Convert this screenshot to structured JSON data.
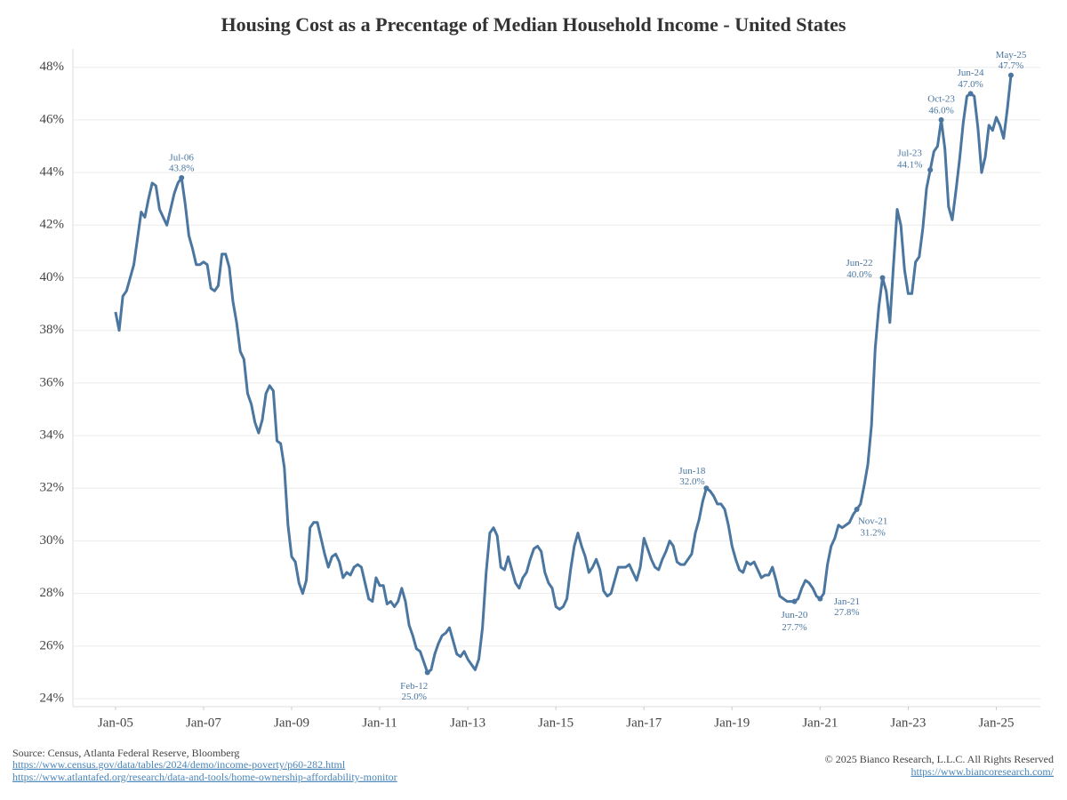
{
  "chart_data": {
    "type": "line",
    "title": "Housing Cost as a Precentage of Median Household Income - United States",
    "x": [
      "2005-01",
      "2005-02",
      "2005-03",
      "2005-04",
      "2005-05",
      "2005-06",
      "2005-07",
      "2005-08",
      "2005-09",
      "2005-10",
      "2005-11",
      "2005-12",
      "2006-01",
      "2006-02",
      "2006-03",
      "2006-04",
      "2006-05",
      "2006-06",
      "2006-07",
      "2006-08",
      "2006-09",
      "2006-10",
      "2006-11",
      "2006-12",
      "2007-01",
      "2007-02",
      "2007-03",
      "2007-04",
      "2007-05",
      "2007-06",
      "2007-07",
      "2007-08",
      "2007-09",
      "2007-10",
      "2007-11",
      "2007-12",
      "2008-01",
      "2008-02",
      "2008-03",
      "2008-04",
      "2008-05",
      "2008-06",
      "2008-07",
      "2008-08",
      "2008-09",
      "2008-10",
      "2008-11",
      "2008-12",
      "2009-01",
      "2009-02",
      "2009-03",
      "2009-04",
      "2009-05",
      "2009-06",
      "2009-07",
      "2009-08",
      "2009-09",
      "2009-10",
      "2009-11",
      "2009-12",
      "2010-01",
      "2010-02",
      "2010-03",
      "2010-04",
      "2010-05",
      "2010-06",
      "2010-07",
      "2010-08",
      "2010-09",
      "2010-10",
      "2010-11",
      "2010-12",
      "2011-01",
      "2011-02",
      "2011-03",
      "2011-04",
      "2011-05",
      "2011-06",
      "2011-07",
      "2011-08",
      "2011-09",
      "2011-10",
      "2011-11",
      "2011-12",
      "2012-01",
      "2012-02",
      "2012-03",
      "2012-04",
      "2012-05",
      "2012-06",
      "2012-07",
      "2012-08",
      "2012-09",
      "2012-10",
      "2012-11",
      "2012-12",
      "2013-01",
      "2013-02",
      "2013-03",
      "2013-04",
      "2013-05",
      "2013-06",
      "2013-07",
      "2013-08",
      "2013-09",
      "2013-10",
      "2013-11",
      "2013-12",
      "2014-01",
      "2014-02",
      "2014-03",
      "2014-04",
      "2014-05",
      "2014-06",
      "2014-07",
      "2014-08",
      "2014-09",
      "2014-10",
      "2014-11",
      "2014-12",
      "2015-01",
      "2015-02",
      "2015-03",
      "2015-04",
      "2015-05",
      "2015-06",
      "2015-07",
      "2015-08",
      "2015-09",
      "2015-10",
      "2015-11",
      "2015-12",
      "2016-01",
      "2016-02",
      "2016-03",
      "2016-04",
      "2016-05",
      "2016-06",
      "2016-07",
      "2016-08",
      "2016-09",
      "2016-10",
      "2016-11",
      "2016-12",
      "2017-01",
      "2017-02",
      "2017-03",
      "2017-04",
      "2017-05",
      "2017-06",
      "2017-07",
      "2017-08",
      "2017-09",
      "2017-10",
      "2017-11",
      "2017-12",
      "2018-01",
      "2018-02",
      "2018-03",
      "2018-04",
      "2018-05",
      "2018-06",
      "2018-07",
      "2018-08",
      "2018-09",
      "2018-10",
      "2018-11",
      "2018-12",
      "2019-01",
      "2019-02",
      "2019-03",
      "2019-04",
      "2019-05",
      "2019-06",
      "2019-07",
      "2019-08",
      "2019-09",
      "2019-10",
      "2019-11",
      "2019-12",
      "2020-01",
      "2020-02",
      "2020-03",
      "2020-04",
      "2020-05",
      "2020-06",
      "2020-07",
      "2020-08",
      "2020-09",
      "2020-10",
      "2020-11",
      "2020-12",
      "2021-01",
      "2021-02",
      "2021-03",
      "2021-04",
      "2021-05",
      "2021-06",
      "2021-07",
      "2021-08",
      "2021-09",
      "2021-10",
      "2021-11",
      "2021-12",
      "2022-01",
      "2022-02",
      "2022-03",
      "2022-04",
      "2022-05",
      "2022-06",
      "2022-07",
      "2022-08",
      "2022-09",
      "2022-10",
      "2022-11",
      "2022-12",
      "2023-01",
      "2023-02",
      "2023-03",
      "2023-04",
      "2023-05",
      "2023-06",
      "2023-07",
      "2023-08",
      "2023-09",
      "2023-10",
      "2023-11",
      "2023-12",
      "2024-01",
      "2024-02",
      "2024-03",
      "2024-04",
      "2024-05",
      "2024-06",
      "2024-07",
      "2024-08",
      "2024-09",
      "2024-10",
      "2024-11",
      "2024-12",
      "2025-01",
      "2025-02",
      "2025-03",
      "2025-04",
      "2025-05"
    ],
    "series": [
      {
        "name": "Housing Cost as % of Median Household Income",
        "color": "#4a76a0",
        "values": [
          38.7,
          38.0,
          39.3,
          39.5,
          40.0,
          40.5,
          41.5,
          42.5,
          42.3,
          43.0,
          43.6,
          43.5,
          42.6,
          42.3,
          42.0,
          42.6,
          43.2,
          43.6,
          43.8,
          42.8,
          41.6,
          41.1,
          40.5,
          40.5,
          40.6,
          40.5,
          39.6,
          39.5,
          39.7,
          40.9,
          40.9,
          40.4,
          39.1,
          38.3,
          37.2,
          36.9,
          35.6,
          35.2,
          34.5,
          34.1,
          34.6,
          35.6,
          35.9,
          35.7,
          33.8,
          33.7,
          32.8,
          30.6,
          29.4,
          29.2,
          28.4,
          28.0,
          28.5,
          30.5,
          30.7,
          30.7,
          30.1,
          29.5,
          29.0,
          29.4,
          29.5,
          29.2,
          28.6,
          28.8,
          28.7,
          29.0,
          29.1,
          29.0,
          28.4,
          27.8,
          27.7,
          28.6,
          28.3,
          28.3,
          27.6,
          27.7,
          27.5,
          27.7,
          28.2,
          27.7,
          26.8,
          26.4,
          25.9,
          25.8,
          25.4,
          25.0,
          25.1,
          25.7,
          26.1,
          26.4,
          26.5,
          26.7,
          26.2,
          25.7,
          25.6,
          25.8,
          25.5,
          25.3,
          25.1,
          25.5,
          26.7,
          28.8,
          30.3,
          30.5,
          30.2,
          29.0,
          28.9,
          29.4,
          28.9,
          28.4,
          28.2,
          28.6,
          28.8,
          29.3,
          29.7,
          29.8,
          29.6,
          28.8,
          28.4,
          28.2,
          27.5,
          27.4,
          27.5,
          27.8,
          28.9,
          29.8,
          30.3,
          29.8,
          29.4,
          28.8,
          29.0,
          29.3,
          28.9,
          28.1,
          27.9,
          28.0,
          28.5,
          29.0,
          29.0,
          29.0,
          29.1,
          28.8,
          28.5,
          29.0,
          30.1,
          29.7,
          29.3,
          29.0,
          28.9,
          29.3,
          29.6,
          30.0,
          29.8,
          29.2,
          29.1,
          29.1,
          29.3,
          29.5,
          30.3,
          30.8,
          31.5,
          32.0,
          31.9,
          31.7,
          31.4,
          31.4,
          31.2,
          30.6,
          29.8,
          29.3,
          28.9,
          28.8,
          29.2,
          29.1,
          29.2,
          28.9,
          28.6,
          28.7,
          28.7,
          29.0,
          28.5,
          27.9,
          27.8,
          27.7,
          27.7,
          27.7,
          27.8,
          28.2,
          28.5,
          28.4,
          28.2,
          27.9,
          27.8,
          28.0,
          29.1,
          29.8,
          30.1,
          30.6,
          30.5,
          30.6,
          30.7,
          31.0,
          31.2,
          31.4,
          32.1,
          32.9,
          34.4,
          37.3,
          38.9,
          40.0,
          39.5,
          38.3,
          40.5,
          42.6,
          42.0,
          40.3,
          39.4,
          39.4,
          40.6,
          40.8,
          41.9,
          43.4,
          44.1,
          44.8,
          45.0,
          46.0,
          44.9,
          42.7,
          42.2,
          43.3,
          44.5,
          45.9,
          46.9,
          47.0,
          46.9,
          45.7,
          44.0,
          44.6,
          45.8,
          45.6,
          46.1,
          45.8,
          45.3,
          46.4,
          47.7
        ]
      }
    ],
    "xlim": [
      "2004-06",
      "2026-01"
    ],
    "xticks": [
      {
        "value": "2005-01",
        "label": "Jan-05"
      },
      {
        "value": "2007-01",
        "label": "Jan-07"
      },
      {
        "value": "2009-01",
        "label": "Jan-09"
      },
      {
        "value": "2011-01",
        "label": "Jan-11"
      },
      {
        "value": "2013-01",
        "label": "Jan-13"
      },
      {
        "value": "2015-01",
        "label": "Jan-15"
      },
      {
        "value": "2017-01",
        "label": "Jan-17"
      },
      {
        "value": "2019-01",
        "label": "Jan-19"
      },
      {
        "value": "2021-01",
        "label": "Jan-21"
      },
      {
        "value": "2023-01",
        "label": "Jan-23"
      },
      {
        "value": "2025-01",
        "label": "Jan-25"
      }
    ],
    "ylim": [
      23.8,
      48.7
    ],
    "yticks": [
      {
        "value": 24,
        "label": "24%"
      },
      {
        "value": 26,
        "label": "26%"
      },
      {
        "value": 28,
        "label": "28%"
      },
      {
        "value": 30,
        "label": "30%"
      },
      {
        "value": 32,
        "label": "32%"
      },
      {
        "value": 34,
        "label": "34%"
      },
      {
        "value": 36,
        "label": "36%"
      },
      {
        "value": 38,
        "label": "38%"
      },
      {
        "value": 40,
        "label": "40%"
      },
      {
        "value": 42,
        "label": "42%"
      },
      {
        "value": 44,
        "label": "44%"
      },
      {
        "value": 46,
        "label": "46%"
      },
      {
        "value": 48,
        "label": "48%"
      }
    ],
    "grid": true,
    "annotations": [
      {
        "x": "2006-07",
        "date": "Jul-06",
        "value": 43.8,
        "label": "43.8%"
      },
      {
        "x": "2012-02",
        "date": "Feb-12",
        "value": 25.0,
        "label": "25.0%"
      },
      {
        "x": "2018-06",
        "date": "Jun-18",
        "value": 32.0,
        "label": "32.0%"
      },
      {
        "x": "2020-06",
        "date": "Jun-20",
        "value": 27.7,
        "label": "27.7%"
      },
      {
        "x": "2021-01",
        "date": "Jan-21",
        "value": 27.8,
        "label": "27.8%"
      },
      {
        "x": "2021-11",
        "date": "Nov-21",
        "value": 31.2,
        "label": "31.2%"
      },
      {
        "x": "2022-06",
        "date": "Jun-22",
        "value": 40.0,
        "label": "40.0%"
      },
      {
        "x": "2023-07",
        "date": "Jul-23",
        "value": 44.1,
        "label": "44.1%"
      },
      {
        "x": "2023-10",
        "date": "Oct-23",
        "value": 46.0,
        "label": "46.0%"
      },
      {
        "x": "2024-06",
        "date": "Jun-24",
        "value": 47.0,
        "label": "47.0%"
      },
      {
        "x": "2025-05",
        "date": "May-25",
        "value": 47.7,
        "label": "47.7%"
      }
    ]
  },
  "footer": {
    "source": "Source: Census, Atlanta Federal Reserve, Bloomberg",
    "links": [
      "https://www.census.gov/data/tables/2024/demo/income-poverty/p60-282.html",
      "https://www.atlantafed.org/research/data-and-tools/home-ownership-affordability-monitor"
    ],
    "copyright": "© 2025 Bianco Research, L.L.C. All Rights Reserved",
    "site": "https://www.biancoresearch.com/"
  }
}
